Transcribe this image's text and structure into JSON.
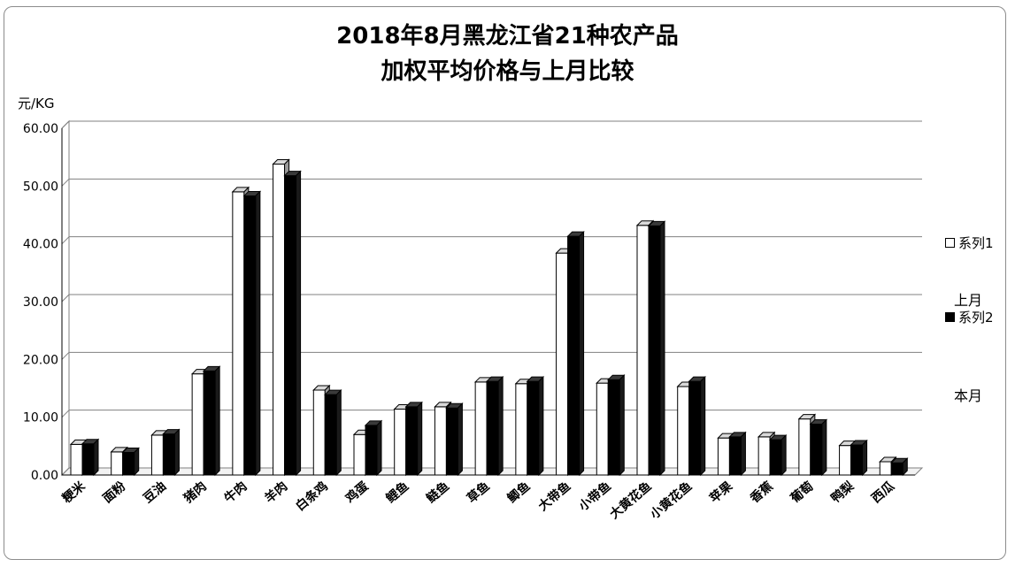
{
  "chart_data": {
    "type": "bar",
    "title_line1": "2018年8月黑龙江省21种农产品",
    "title_line2": "加权平均价格与上月比较",
    "ylabel": "元/KG",
    "ylim": [
      0,
      60
    ],
    "yticks": [
      "0.00",
      "10.00",
      "20.00",
      "30.00",
      "40.00",
      "50.00",
      "60.00"
    ],
    "grid": true,
    "legend_position": "right",
    "categories": [
      "粳米",
      "面粉",
      "豆油",
      "猪肉",
      "牛肉",
      "羊肉",
      "白条鸡",
      "鸡蛋",
      "鲤鱼",
      "鲢鱼",
      "草鱼",
      "鲫鱼",
      "大带鱼",
      "小带鱼",
      "大黄花鱼",
      "小黄花鱼",
      "苹果",
      "香蕉",
      "葡萄",
      "鸭梨",
      "西瓜"
    ],
    "series": [
      {
        "name": "系列1",
        "color": "#ffffff",
        "values": [
          5.3,
          4.0,
          6.9,
          17.5,
          49.0,
          53.8,
          14.7,
          7.0,
          11.4,
          11.8,
          16.1,
          15.8,
          38.4,
          15.9,
          43.2,
          15.3,
          6.4,
          6.6,
          9.7,
          5.1,
          2.3
        ]
      },
      {
        "name": "系列2",
        "color": "#000000",
        "values": [
          5.4,
          3.9,
          7.1,
          18.0,
          48.3,
          51.8,
          13.9,
          8.6,
          11.8,
          11.6,
          16.2,
          16.2,
          41.3,
          16.5,
          43.1,
          16.2,
          6.6,
          6.1,
          8.8,
          5.2,
          2.1
        ]
      }
    ]
  },
  "legend": {
    "s1_label": "系列1",
    "s1_note": "上月",
    "s2_label": "系列2",
    "s2_note": "本月"
  }
}
